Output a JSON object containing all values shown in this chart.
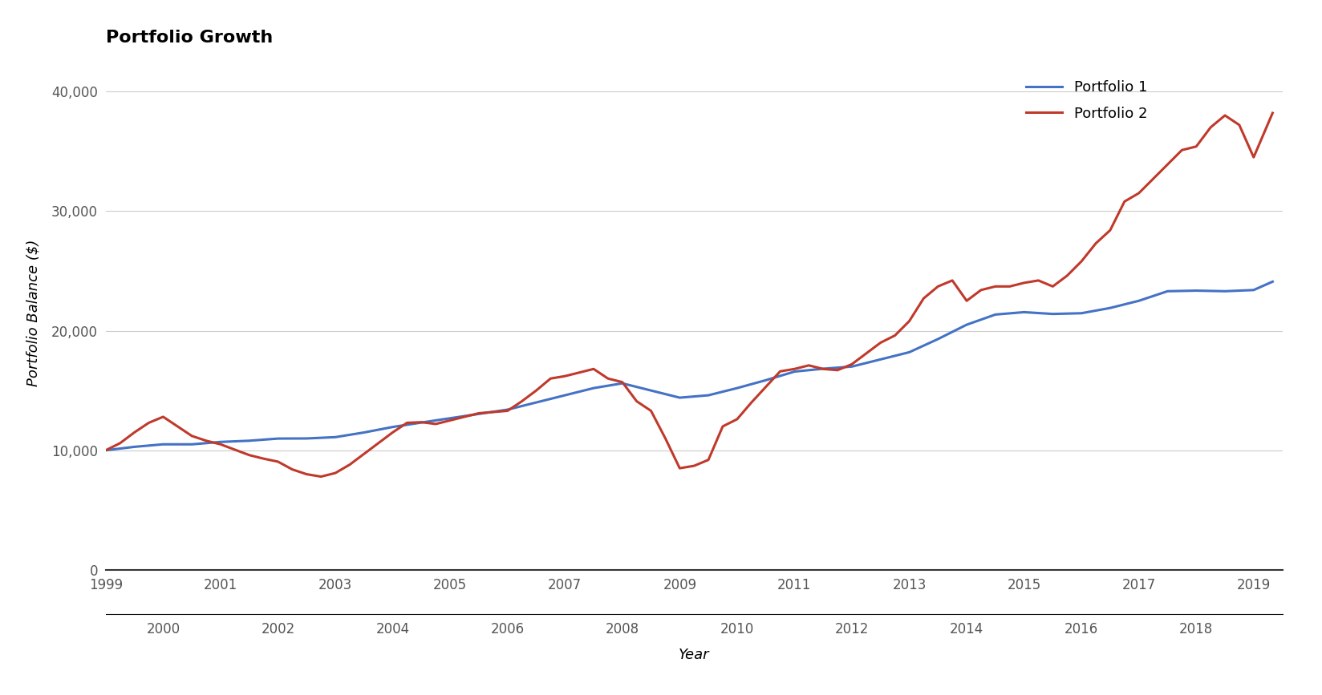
{
  "title": "Portfolio Growth",
  "xlabel": "Year",
  "ylabel": "Portfolio Balance ($)",
  "background_color": "#ffffff",
  "portfolio1_color": "#4472C4",
  "portfolio2_color": "#C0392B",
  "ylim": [
    0,
    43000
  ],
  "yticks": [
    0,
    10000,
    20000,
    30000,
    40000
  ],
  "xlim_start": 1999.0,
  "xlim_end": 2019.5,
  "xticks_top": [
    1999,
    2001,
    2003,
    2005,
    2007,
    2009,
    2011,
    2013,
    2015,
    2017,
    2019
  ],
  "xticks_bottom": [
    2000,
    2002,
    2004,
    2006,
    2008,
    2010,
    2012,
    2014,
    2016,
    2018
  ],
  "legend_labels": [
    "Portfolio 1",
    "Portfolio 2"
  ],
  "title_fontsize": 16,
  "label_fontsize": 13,
  "tick_fontsize": 12,
  "legend_fontsize": 13,
  "p1_years": [
    1999.0,
    1999.5,
    2000.0,
    2000.5,
    2001.0,
    2001.5,
    2002.0,
    2002.5,
    2003.0,
    2003.5,
    2004.0,
    2004.5,
    2005.0,
    2005.5,
    2006.0,
    2006.5,
    2007.0,
    2007.5,
    2008.0,
    2008.5,
    2009.0,
    2009.5,
    2010.0,
    2010.5,
    2011.0,
    2011.5,
    2012.0,
    2012.5,
    2013.0,
    2013.5,
    2014.0,
    2014.5,
    2015.0,
    2015.5,
    2016.0,
    2016.5,
    2017.0,
    2017.5,
    2018.0,
    2018.5,
    2019.0,
    2019.33
  ],
  "p1_values": [
    10000,
    10290,
    10500,
    10500,
    10700,
    10800,
    10980,
    10990,
    11100,
    11490,
    11950,
    12320,
    12680,
    13040,
    13400,
    14000,
    14600,
    15200,
    15600,
    15000,
    14400,
    14600,
    15200,
    15860,
    16580,
    16820,
    17000,
    17600,
    18200,
    19300,
    20500,
    21350,
    21550,
    21400,
    21460,
    21900,
    22500,
    23300,
    23350,
    23300,
    23400,
    24100
  ],
  "p2_years": [
    1999.0,
    1999.25,
    1999.5,
    1999.75,
    2000.0,
    2000.25,
    2000.5,
    2000.75,
    2001.0,
    2001.25,
    2001.5,
    2001.75,
    2002.0,
    2002.25,
    2002.5,
    2002.75,
    2003.0,
    2003.25,
    2003.5,
    2003.75,
    2004.0,
    2004.25,
    2004.5,
    2004.75,
    2005.0,
    2005.25,
    2005.5,
    2005.75,
    2006.0,
    2006.25,
    2006.5,
    2006.75,
    2007.0,
    2007.25,
    2007.5,
    2007.75,
    2008.0,
    2008.25,
    2008.5,
    2008.75,
    2009.0,
    2009.25,
    2009.5,
    2009.75,
    2010.0,
    2010.25,
    2010.5,
    2010.75,
    2011.0,
    2011.25,
    2011.5,
    2011.75,
    2012.0,
    2012.25,
    2012.5,
    2012.75,
    2013.0,
    2013.25,
    2013.5,
    2013.75,
    2014.0,
    2014.25,
    2014.5,
    2014.75,
    2015.0,
    2015.25,
    2015.5,
    2015.75,
    2016.0,
    2016.25,
    2016.5,
    2016.75,
    2017.0,
    2017.25,
    2017.5,
    2017.75,
    2018.0,
    2018.25,
    2018.5,
    2018.75,
    2019.0,
    2019.33
  ],
  "p2_values": [
    10000,
    10600,
    11500,
    12300,
    12800,
    12000,
    11200,
    10800,
    10500,
    10050,
    9600,
    9300,
    9050,
    8400,
    8000,
    7800,
    8100,
    8800,
    9700,
    10600,
    11500,
    12300,
    12350,
    12200,
    12500,
    12800,
    13100,
    13200,
    13300,
    14100,
    15000,
    16000,
    16200,
    16500,
    16800,
    16000,
    15700,
    14100,
    13300,
    11000,
    8500,
    8700,
    9200,
    12000,
    12600,
    14000,
    15300,
    16600,
    16800,
    17100,
    16800,
    16700,
    17200,
    18100,
    19000,
    19600,
    20800,
    22700,
    23700,
    24200,
    22500,
    23400,
    23700,
    23700,
    24000,
    24200,
    23700,
    24600,
    25800,
    27300,
    28400,
    30800,
    31500,
    32700,
    33900,
    35100,
    35400,
    37000,
    38000,
    37200,
    34500,
    38200
  ]
}
